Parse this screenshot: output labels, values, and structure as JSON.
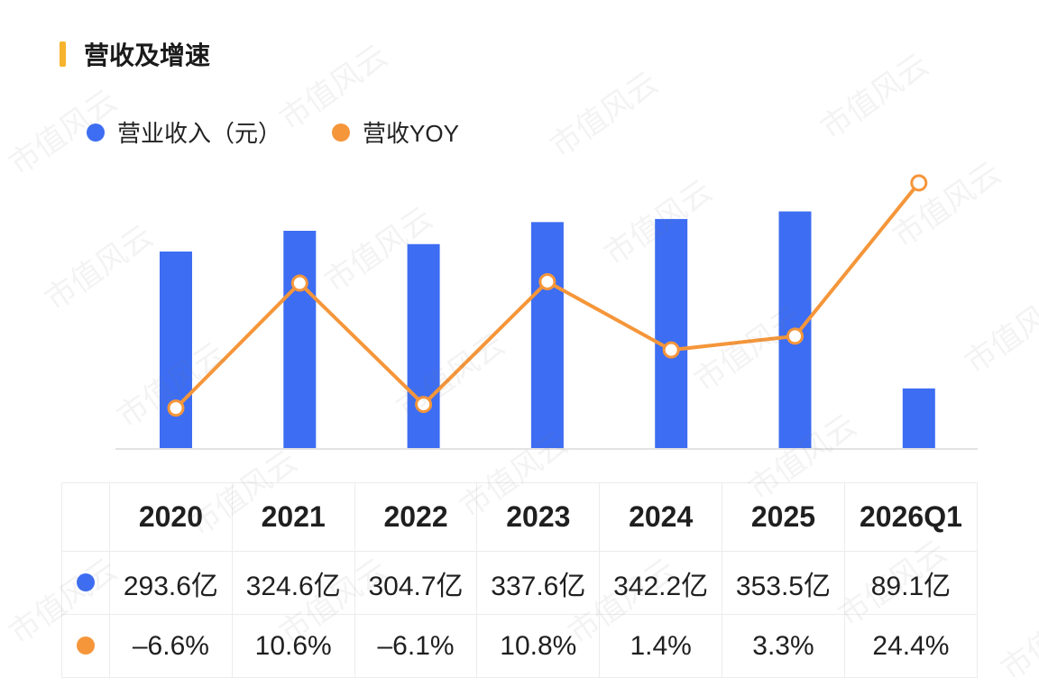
{
  "title": "营收及增速",
  "legend": {
    "revenue": "营业收入（元）",
    "yoy": "营收YOY"
  },
  "colors": {
    "revenue": "#3d6df2",
    "yoy": "#f5963a",
    "accent": "#f6b32b"
  },
  "chart_data": {
    "type": "bar",
    "categories": [
      "2020",
      "2021",
      "2022",
      "2023",
      "2024",
      "2025",
      "2026Q1"
    ],
    "series": [
      {
        "name": "营业收入（元）",
        "type": "bar",
        "values": [
          293.6,
          324.6,
          304.7,
          337.6,
          342.2,
          353.5,
          89.1
        ],
        "unit": "亿"
      },
      {
        "name": "营收YOY",
        "type": "line",
        "values": [
          -6.6,
          10.6,
          -6.1,
          10.8,
          1.4,
          3.3,
          24.4
        ],
        "unit": "%"
      }
    ]
  },
  "table": {
    "headers": [
      "2020",
      "2021",
      "2022",
      "2023",
      "2024",
      "2025",
      "2026Q1"
    ],
    "revenue_row": [
      "293.6亿",
      "324.6亿",
      "304.7亿",
      "337.6亿",
      "342.2亿",
      "353.5亿",
      "89.1亿"
    ],
    "yoy_row": [
      "–6.6%",
      "10.6%",
      "–6.1%",
      "10.8%",
      "1.4%",
      "3.3%",
      "24.4%"
    ]
  },
  "watermark": "市值风云"
}
